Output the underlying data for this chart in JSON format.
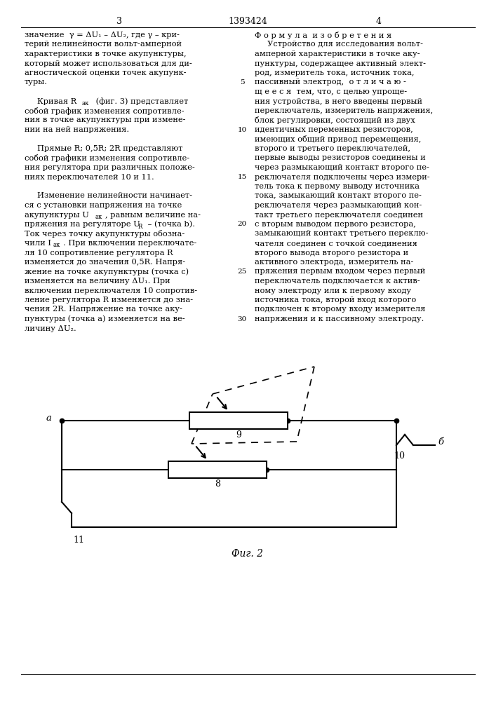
{
  "page_number_left": "3",
  "patent_number": "1393424",
  "page_number_right": "4",
  "background_color": "#ffffff",
  "text_color": "#000000",
  "fig_label": "Фиг. 2",
  "line_width": 1.5,
  "circuit_line_color": "#000000"
}
